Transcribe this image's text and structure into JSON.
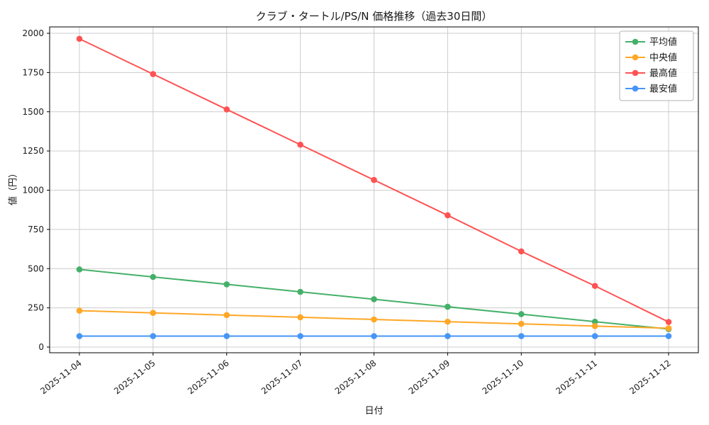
{
  "chart_data": {
    "type": "line",
    "title": "クラブ・タートル/PS/N 価格推移（過去30日間）",
    "xlabel": "日付",
    "ylabel": "値（円）",
    "x": [
      "2025-11-04",
      "2025-11-05",
      "2025-11-06",
      "2025-11-07",
      "2025-11-08",
      "2025-11-09",
      "2025-11-10",
      "2025-11-11",
      "2025-11-12"
    ],
    "series": [
      {
        "name": "平均値",
        "color": "#45b069",
        "values": [
          495,
          447,
          400,
          352,
          305,
          257,
          210,
          162,
          115
        ]
      },
      {
        "name": "中央値",
        "color": "#ffa726",
        "values": [
          232,
          218,
          204,
          190,
          176,
          162,
          148,
          134,
          120
        ]
      },
      {
        "name": "最高値",
        "color": "#ff5252",
        "values": [
          1965,
          1740,
          1515,
          1290,
          1065,
          840,
          610,
          390,
          160
        ]
      },
      {
        "name": "最安値",
        "color": "#4695f7",
        "values": [
          70,
          70,
          70,
          70,
          70,
          70,
          70,
          70,
          70
        ]
      }
    ],
    "ylim": [
      0,
      2000
    ],
    "yticks": [
      0,
      250,
      500,
      750,
      1000,
      1250,
      1500,
      1750,
      2000
    ],
    "grid": true,
    "legend_position": "upper right"
  }
}
